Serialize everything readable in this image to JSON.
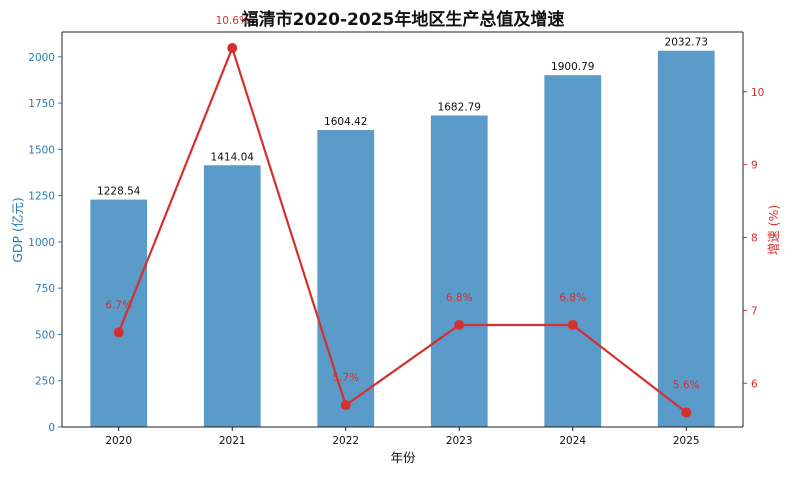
{
  "chart_data": {
    "type": "bar",
    "title": "福清市2020-2025年地区生产总值及增速",
    "xlabel": "年份",
    "ylabel_left": "GDP (亿元)",
    "ylabel_right": "增速 (%)",
    "categories": [
      "2020",
      "2021",
      "2022",
      "2023",
      "2024",
      "2025"
    ],
    "series": [
      {
        "type": "bar",
        "axis": "left",
        "values": [
          1228.54,
          1414.04,
          1604.42,
          1682.79,
          1900.79,
          2032.73
        ],
        "labels": [
          "1228.54",
          "1414.04",
          "1604.42",
          "1682.79",
          "1900.79",
          "2032.73"
        ],
        "color": "#5b9bc9"
      },
      {
        "type": "line",
        "axis": "right",
        "values": [
          6.7,
          10.6,
          5.7,
          6.8,
          6.8,
          5.6
        ],
        "labels": [
          "6.7%",
          "10.6%",
          "5.7%",
          "6.8%",
          "6.8%",
          "5.6%"
        ],
        "color": "#d62f2f"
      }
    ],
    "ylim_left": [
      0,
      2134
    ],
    "ylim_right": [
      5.4,
      10.82
    ],
    "yticks_left": [
      "0",
      "250",
      "500",
      "750",
      "1000",
      "1250",
      "1500",
      "1750",
      "2000"
    ],
    "yticks_right": [
      "6",
      "7",
      "8",
      "9",
      "10"
    ],
    "left_axis_color": "#2a7bb5",
    "right_axis_color": "#d62f2f",
    "grid": false
  }
}
